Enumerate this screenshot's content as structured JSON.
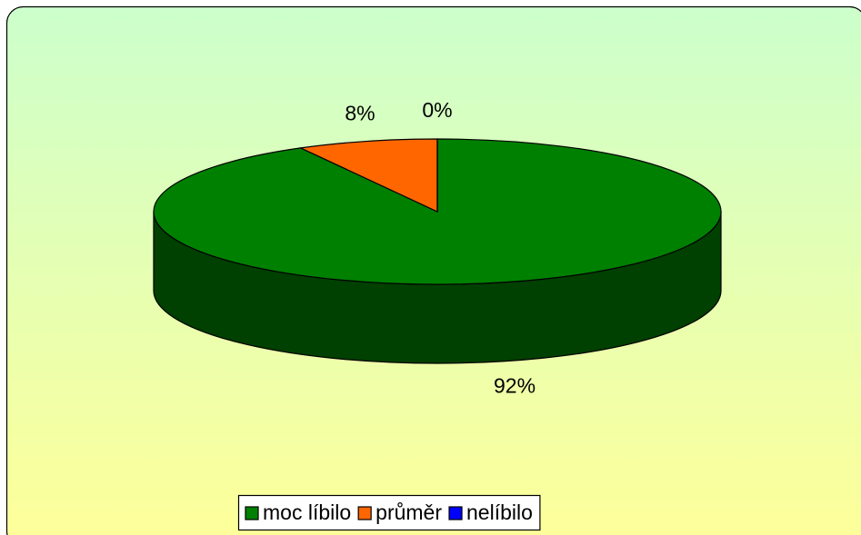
{
  "chart_data": {
    "type": "pie",
    "categories": [
      "moc líbilo",
      "průměr",
      "nelíbilo"
    ],
    "values": [
      92,
      8,
      0
    ],
    "value_labels": [
      "92%",
      "8%",
      "0%"
    ],
    "colors": [
      "#008000",
      "#ff6600",
      "#0000ff"
    ],
    "legend": "bottom"
  }
}
